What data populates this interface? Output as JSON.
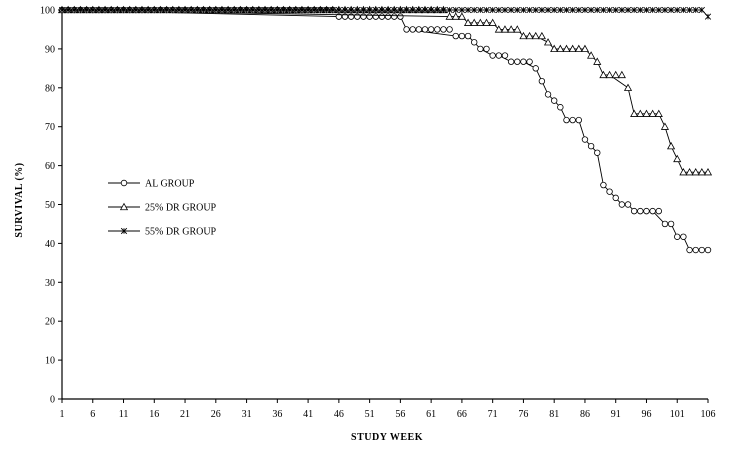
{
  "chart_data": {
    "type": "line",
    "xlabel": "STUDY WEEK",
    "ylabel": "SURVIVAL (%)",
    "xlim": [
      1,
      106
    ],
    "ylim": [
      0,
      100
    ],
    "x_ticks": [
      1,
      6,
      11,
      16,
      21,
      26,
      31,
      36,
      41,
      46,
      51,
      56,
      61,
      66,
      71,
      76,
      81,
      86,
      91,
      96,
      101,
      106
    ],
    "y_ticks": [
      0,
      10,
      20,
      30,
      40,
      50,
      60,
      70,
      80,
      90,
      100
    ],
    "grid": false,
    "legend_position": "center-left",
    "series": [
      {
        "name": "AL GROUP",
        "marker": "circle",
        "x": [
          1,
          46,
          56,
          57,
          65,
          67,
          68,
          69,
          71,
          72,
          74,
          76,
          78,
          79,
          80,
          81,
          82,
          83,
          85,
          86,
          87,
          88,
          89,
          90,
          91,
          92,
          93,
          94,
          95,
          97,
          99,
          100,
          101,
          102,
          103,
          106
        ],
        "y": [
          100,
          98.3,
          98.3,
          95,
          93.3,
          93.3,
          91.7,
          90,
          88.3,
          88.3,
          86.7,
          86.7,
          85,
          81.7,
          78.3,
          76.7,
          75,
          71.7,
          71.7,
          66.7,
          65,
          63.3,
          55,
          53.3,
          51.7,
          50,
          50,
          48.3,
          48.3,
          48.3,
          45,
          45,
          41.7,
          41.7,
          38.3,
          38.3
        ]
      },
      {
        "name": "25% DR GROUP",
        "marker": "triangle",
        "x": [
          1,
          64,
          66,
          67,
          71,
          72,
          75,
          76,
          78,
          80,
          81,
          86,
          87,
          88,
          89,
          90,
          93,
          94,
          98,
          99,
          100,
          101,
          102,
          103,
          106
        ],
        "y": [
          100,
          98.3,
          98.3,
          96.7,
          96.7,
          95,
          95,
          93.3,
          93.3,
          91.7,
          90,
          90,
          88.3,
          86.7,
          83.3,
          83.3,
          80,
          73.3,
          73.3,
          70,
          65,
          61.7,
          58.3,
          58.3,
          58.3
        ]
      },
      {
        "name": "55% DR GROUP",
        "marker": "star",
        "x": [
          1,
          105,
          106
        ],
        "y": [
          100,
          100,
          98.3
        ]
      }
    ]
  }
}
